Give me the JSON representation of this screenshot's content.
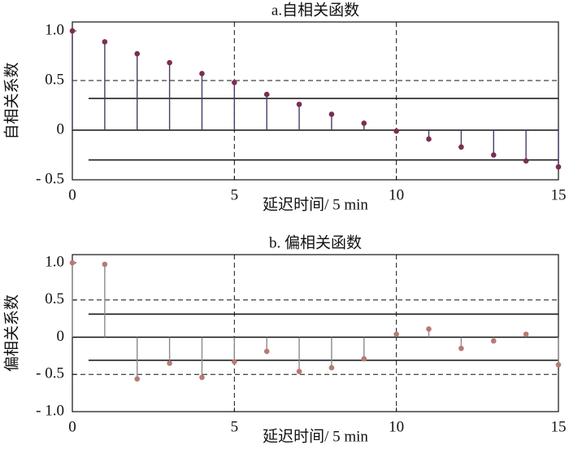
{
  "chart_data": [
    {
      "type": "stem",
      "title": "a.自相关函数",
      "x_label": "延迟时间/ 5 min",
      "y_label": "自相关系数",
      "x": [
        0,
        1,
        2,
        3,
        4,
        5,
        6,
        7,
        8,
        9,
        10,
        11,
        12,
        13,
        14,
        15
      ],
      "values": [
        1.0,
        0.89,
        0.77,
        0.68,
        0.57,
        0.48,
        0.36,
        0.26,
        0.16,
        0.07,
        -0.01,
        -0.09,
        -0.17,
        -0.25,
        -0.31,
        -0.37
      ],
      "color": "#7a2f4f",
      "stem_color": "#4b3a6a",
      "xlim": [
        0,
        15
      ],
      "xticks": [
        0,
        5,
        10,
        15
      ],
      "ylim": [
        -0.5,
        1.09
      ],
      "yticks": [
        {
          "value": 1.0,
          "label": "1.0"
        },
        {
          "value": 0.5,
          "label": "0.5"
        },
        0,
        {
          "value": -0.5,
          "label": "- 0.5"
        }
      ],
      "dashed_hlines": [
        0.5
      ],
      "dashed_vlines": [
        5,
        10
      ],
      "confidence_lines": {
        "values": [
          0.32,
          -0.3
        ],
        "xlim": [
          0.5,
          15
        ]
      }
    },
    {
      "type": "stem",
      "title": "b. 偏相关函数",
      "x_label": "延迟时间/ 5 min",
      "y_label": "偏相关系数",
      "x": [
        0,
        1,
        2,
        3,
        4,
        5,
        6,
        7,
        8,
        9,
        10,
        11,
        12,
        13,
        14,
        15
      ],
      "values": [
        1.0,
        0.98,
        -0.56,
        -0.35,
        -0.54,
        -0.33,
        -0.19,
        -0.46,
        -0.41,
        -0.29,
        0.04,
        0.11,
        -0.15,
        -0.05,
        0.04,
        -0.37
      ],
      "color": "#b87a72",
      "stem_color": "#8a8a8a",
      "xlim": [
        0,
        15
      ],
      "xticks": [
        0,
        5,
        10,
        15
      ],
      "ylim": [
        -1.0,
        1.11
      ],
      "yticks": [
        {
          "value": 1.0,
          "label": "1.0"
        },
        {
          "value": 0.5,
          "label": "0.5"
        },
        0,
        {
          "value": -0.5,
          "label": "- 0.5"
        },
        {
          "value": -1.0,
          "label": "- 1.0"
        }
      ],
      "dashed_hlines": [
        0.5,
        -0.5
      ],
      "dashed_vlines": [
        5,
        10
      ],
      "confidence_lines": {
        "values": [
          0.31,
          -0.31
        ],
        "xlim": [
          0.5,
          15
        ]
      }
    }
  ]
}
